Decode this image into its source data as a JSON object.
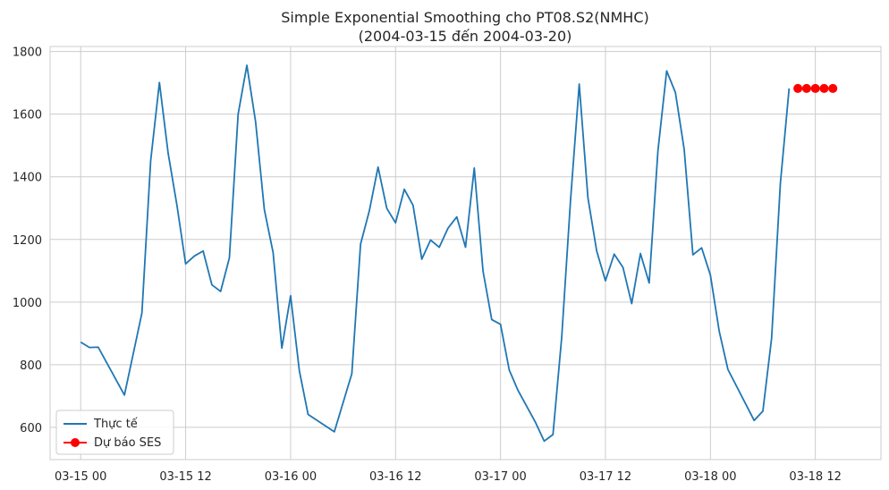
{
  "chart_data": {
    "type": "line",
    "title": "Simple Exponential Smoothing cho PT08.S2(NMHC)",
    "subtitle": "(2004-03-15 đến 2004-03-20)",
    "xlabel": "",
    "ylabel": "",
    "x_unit": "hours since 03-15 00",
    "xlim": [
      -3.5,
      91.5
    ],
    "ylim": [
      497,
      1816
    ],
    "x_ticks": [
      {
        "x": 0,
        "label": "03-15 00"
      },
      {
        "x": 12,
        "label": "03-15 12"
      },
      {
        "x": 24,
        "label": "03-16 00"
      },
      {
        "x": 36,
        "label": "03-16 12"
      },
      {
        "x": 48,
        "label": "03-17 00"
      },
      {
        "x": 60,
        "label": "03-17 12"
      },
      {
        "x": 72,
        "label": "03-18 00"
      },
      {
        "x": 84,
        "label": "03-18 12"
      }
    ],
    "y_ticks": [
      600,
      800,
      1000,
      1200,
      1400,
      1600,
      1800
    ],
    "grid": true,
    "legend_position": "bottom-left",
    "series": [
      {
        "name": "Thực tế",
        "color": "#1f77b4",
        "marker": "none",
        "points": [
          [
            0,
            872
          ],
          [
            1,
            855
          ],
          [
            2,
            856
          ],
          [
            5,
            703
          ],
          [
            7,
            965
          ],
          [
            8,
            1451
          ],
          [
            9,
            1701
          ],
          [
            10,
            1475
          ],
          [
            11,
            1310
          ],
          [
            12,
            1122
          ],
          [
            13,
            1147
          ],
          [
            14,
            1163
          ],
          [
            15,
            1055
          ],
          [
            16,
            1034
          ],
          [
            17,
            1141
          ],
          [
            18,
            1600
          ],
          [
            19,
            1756
          ],
          [
            20,
            1575
          ],
          [
            21,
            1295
          ],
          [
            22,
            1158
          ],
          [
            23,
            853
          ],
          [
            24,
            1020
          ],
          [
            25,
            781
          ],
          [
            26,
            641
          ],
          [
            29,
            586
          ],
          [
            31,
            771
          ],
          [
            32,
            1185
          ],
          [
            33,
            1291
          ],
          [
            34,
            1431
          ],
          [
            35,
            1299
          ],
          [
            36,
            1253
          ],
          [
            37,
            1360
          ],
          [
            38,
            1309
          ],
          [
            39,
            1137
          ],
          [
            40,
            1198
          ],
          [
            41,
            1175
          ],
          [
            42,
            1236
          ],
          [
            43,
            1272
          ],
          [
            44,
            1175
          ],
          [
            45,
            1428
          ],
          [
            46,
            1099
          ],
          [
            47,
            944
          ],
          [
            48,
            929
          ],
          [
            49,
            783
          ],
          [
            50,
            718
          ],
          [
            52,
            616
          ],
          [
            53,
            556
          ],
          [
            54,
            577
          ],
          [
            55,
            888
          ],
          [
            56,
            1322
          ],
          [
            57,
            1696
          ],
          [
            58,
            1332
          ],
          [
            59,
            1163
          ],
          [
            60,
            1068
          ],
          [
            61,
            1153
          ],
          [
            62,
            1111
          ],
          [
            63,
            995
          ],
          [
            64,
            1155
          ],
          [
            65,
            1061
          ],
          [
            66,
            1483
          ],
          [
            67,
            1738
          ],
          [
            68,
            1669
          ],
          [
            69,
            1488
          ],
          [
            70,
            1151
          ],
          [
            71,
            1173
          ],
          [
            72,
            1086
          ],
          [
            73,
            908
          ],
          [
            74,
            785
          ],
          [
            77,
            622
          ],
          [
            78,
            652
          ],
          [
            79,
            885
          ],
          [
            80,
            1379
          ],
          [
            81,
            1682
          ]
        ]
      },
      {
        "name": "Dự báo SES",
        "color": "#ff0000",
        "marker": "circle",
        "points": [
          [
            82,
            1682
          ],
          [
            83,
            1682
          ],
          [
            84,
            1682
          ],
          [
            85,
            1682
          ],
          [
            86,
            1682
          ]
        ]
      }
    ]
  }
}
